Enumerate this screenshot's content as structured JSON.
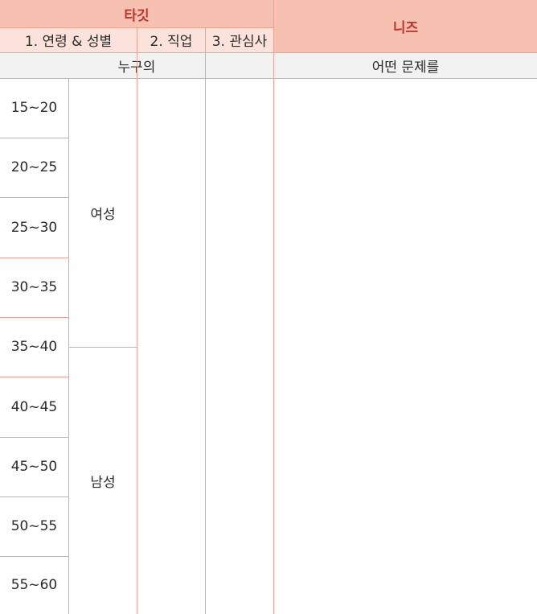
{
  "header": {
    "target_title": "타깃",
    "needs_title": "니즈",
    "sub_columns": [
      "1. 연령 & 성별",
      "2. 직업",
      "3. 관심사"
    ],
    "who_label": "누구의",
    "problem_label": "어떤 문제를"
  },
  "age_ranges": [
    "15~20",
    "20~25",
    "25~30",
    "30~35",
    "35~40",
    "40~45",
    "45~50",
    "50~55",
    "55~60"
  ],
  "genders": [
    "여성",
    "남성"
  ],
  "colors": {
    "main_header_bg": "#f7c1b2",
    "main_header_text": "#c3332a",
    "sub_header_bg": "#fbe2da",
    "label_row_bg": "#f2f2f2",
    "border": "#e7a595"
  }
}
